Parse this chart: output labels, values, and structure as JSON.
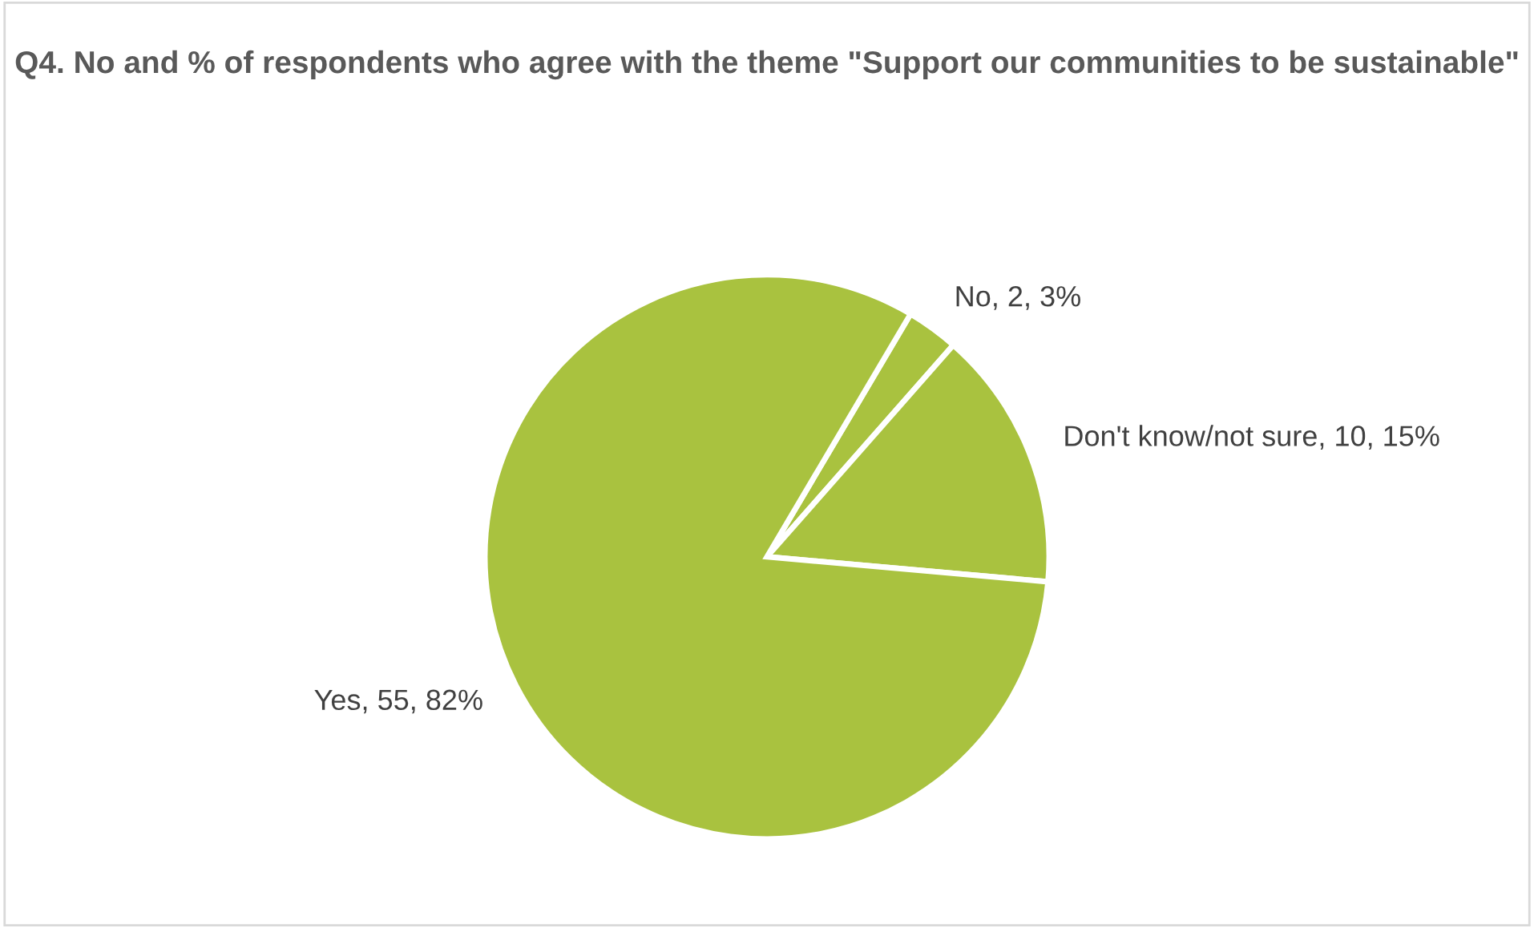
{
  "chart_data": {
    "type": "pie",
    "title": "Q4. No and % of respondents who agree with the theme \"Support our communities to be sustainable\"",
    "categories": [
      "No",
      "Don't know/not sure",
      "Yes"
    ],
    "values": [
      2,
      10,
      55
    ],
    "colors": [
      "#a9c23f",
      "#a9c23f",
      "#a9c23f"
    ],
    "value_labels": [
      "2, 3%",
      "10, 15%",
      "55, 82%"
    ],
    "legend": false
  }
}
